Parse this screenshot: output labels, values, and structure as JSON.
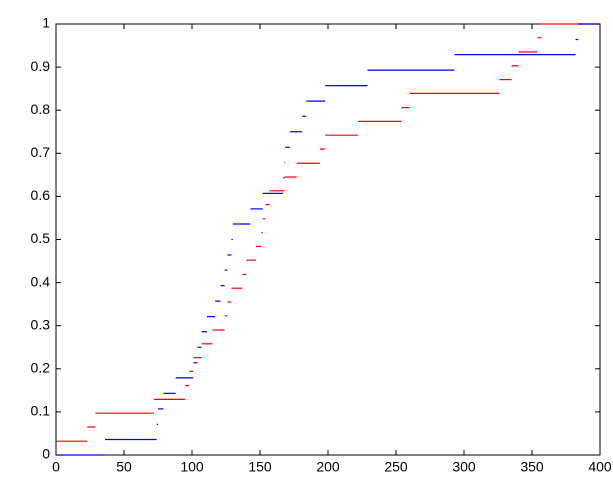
{
  "chart_data": {
    "type": "step",
    "xlim": [
      0,
      400
    ],
    "xticks": [
      0,
      50,
      100,
      150,
      200,
      250,
      300,
      350,
      400
    ],
    "ylim": [
      0,
      1
    ],
    "yticks": [
      0,
      0.1,
      0.2,
      0.3,
      0.4,
      0.5,
      0.6,
      0.7,
      0.8,
      0.9,
      1
    ],
    "series": [
      {
        "color": "#ff0000",
        "x_start": [
          0,
          23,
          29,
          72,
          95,
          98,
          101,
          107,
          115,
          124,
          126,
          129,
          137,
          140,
          147,
          151,
          152,
          154,
          157,
          168,
          177,
          194,
          198,
          222,
          254,
          260,
          326,
          335,
          340,
          354,
          357
        ],
        "x_end": [
          23,
          29,
          72,
          95,
          98,
          101,
          107,
          115,
          124,
          126,
          129,
          137,
          140,
          147,
          151,
          152,
          154,
          157,
          168,
          177,
          194,
          198,
          222,
          254,
          260,
          326,
          335,
          340,
          354,
          357,
          400
        ],
        "values": [
          0.032,
          0.065,
          0.097,
          0.129,
          0.161,
          0.194,
          0.226,
          0.258,
          0.29,
          0.323,
          0.355,
          0.387,
          0.419,
          0.452,
          0.484,
          0.516,
          0.548,
          0.581,
          0.613,
          0.645,
          0.677,
          0.71,
          0.742,
          0.774,
          0.806,
          0.839,
          0.871,
          0.903,
          0.935,
          0.968,
          1
        ]
      },
      {
        "color": "#0000ff",
        "x_start": [
          0,
          36,
          74,
          75,
          79,
          88,
          101,
          104,
          107,
          111,
          117,
          121,
          124,
          126,
          129,
          130,
          143,
          152,
          167,
          168,
          168.5,
          172,
          181,
          184,
          198,
          229,
          293,
          382,
          384
        ],
        "x_end": [
          36,
          74,
          75,
          79,
          88,
          101,
          104,
          107,
          111,
          117,
          121,
          124,
          126,
          129,
          130,
          143,
          152,
          167,
          168,
          168.5,
          172,
          181,
          184,
          198,
          229,
          293,
          382,
          384,
          400
        ],
        "values": [
          0,
          0.036,
          0.071,
          0.107,
          0.143,
          0.179,
          0.214,
          0.25,
          0.286,
          0.321,
          0.357,
          0.393,
          0.429,
          0.464,
          0.5,
          0.536,
          0.571,
          0.607,
          0.643,
          0.679,
          0.714,
          0.75,
          0.786,
          0.821,
          0.857,
          0.893,
          0.929,
          0.964,
          1
        ]
      }
    ]
  }
}
